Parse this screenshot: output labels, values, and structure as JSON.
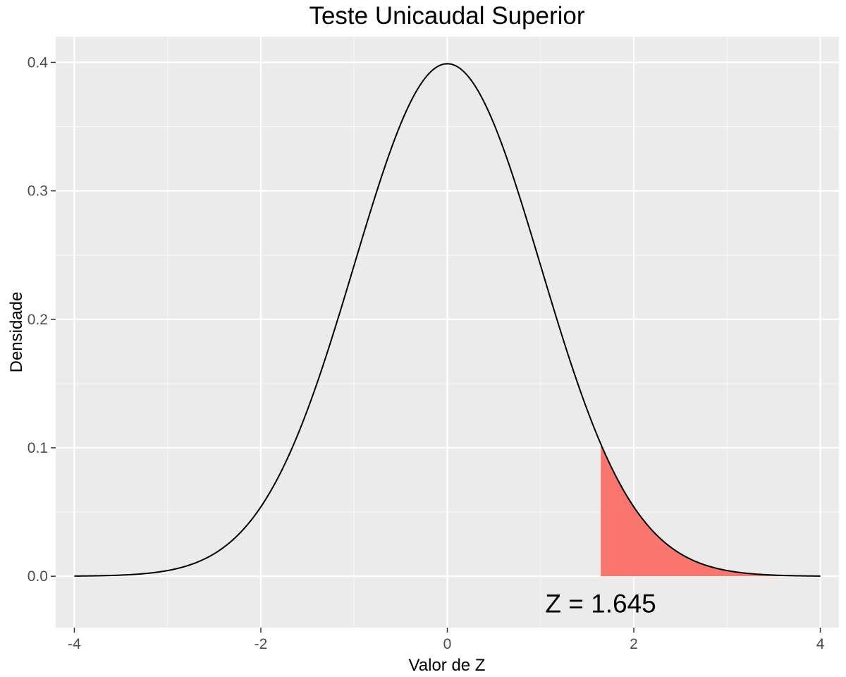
{
  "chart_data": {
    "type": "area",
    "title": "Teste Unicaudal Superior",
    "xlabel": "Valor de Z",
    "ylabel": "Densidade",
    "xlim": [
      -4.2,
      4.2
    ],
    "ylim": [
      -0.04,
      0.42
    ],
    "x_ticks": [
      -4,
      -2,
      0,
      2,
      4
    ],
    "x_tick_labels": [
      "-4",
      "-2",
      "0",
      "2",
      "4"
    ],
    "y_ticks": [
      0.0,
      0.1,
      0.2,
      0.3,
      0.4
    ],
    "y_tick_labels": [
      "0.0",
      "0.1",
      "0.2",
      "0.3",
      "0.4"
    ],
    "x_minor_ticks": [
      -3,
      -1,
      1,
      3
    ],
    "y_minor_ticks": [
      0.05,
      0.15,
      0.25,
      0.35
    ],
    "grid": true,
    "series": [
      {
        "type": "line",
        "distribution": "standard normal density",
        "x_range": [
          -4,
          4
        ],
        "color": "#000000"
      },
      {
        "type": "area",
        "shaded_region": [
          1.645,
          4
        ],
        "color": "#F8766D"
      }
    ],
    "annotations": [
      {
        "text": "Z = 1.645",
        "x": 1.645,
        "y": -0.021
      }
    ],
    "colors": {
      "panel_background": "#EBEBEB",
      "grid": "#FFFFFF",
      "shade": "#F8766D",
      "curve": "#000000"
    }
  }
}
